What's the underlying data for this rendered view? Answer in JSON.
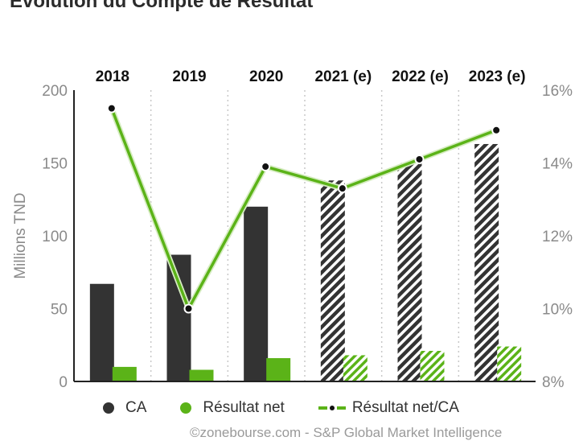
{
  "title": "Evolution du Compte de Résultat",
  "footer": "©zonebourse.com - S&P Global Market Intelligence",
  "colors": {
    "ca": "#333333",
    "resultat_net": "#5bb318",
    "line": "#5bb318",
    "axis_text": "#8a8a8a",
    "grid": "#c8c8c8"
  },
  "legend": {
    "ca": "CA",
    "resultat_net": "Résultat net",
    "ratio": "Résultat net/CA"
  },
  "chart_data": {
    "type": "bar",
    "categories": [
      "2018",
      "2019",
      "2020",
      "2021 (e)",
      "2022 (e)",
      "2023 (e)"
    ],
    "estimated": [
      false,
      false,
      false,
      true,
      true,
      true
    ],
    "series": [
      {
        "name": "CA",
        "axis": "left",
        "values": [
          67,
          87,
          120,
          138,
          150,
          163
        ]
      },
      {
        "name": "Résultat net",
        "axis": "left",
        "values": [
          10,
          8,
          16,
          18,
          21,
          24
        ]
      },
      {
        "name": "Résultat net/CA",
        "type": "line",
        "axis": "right",
        "values": [
          15.5,
          10.0,
          13.9,
          13.3,
          14.1,
          14.9
        ]
      }
    ],
    "ylabel": "Millions TND",
    "ylim": [
      0,
      200
    ],
    "yticks": [
      0,
      50,
      100,
      150,
      200
    ],
    "y2lim": [
      8,
      16
    ],
    "y2ticks": [
      "8%",
      "10%",
      "12%",
      "14%",
      "16%"
    ],
    "y2tick_values": [
      8,
      10,
      12,
      14,
      16
    ],
    "grid": "vertical dotted separators",
    "legend_position": "bottom"
  }
}
